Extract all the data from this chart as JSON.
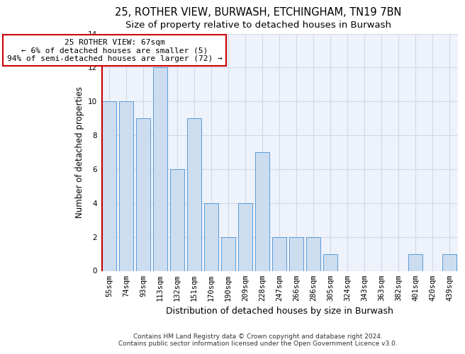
{
  "title1": "25, ROTHER VIEW, BURWASH, ETCHINGHAM, TN19 7BN",
  "title2": "Size of property relative to detached houses in Burwash",
  "xlabel": "Distribution of detached houses by size in Burwash",
  "ylabel": "Number of detached properties",
  "categories": [
    "55sqm",
    "74sqm",
    "93sqm",
    "113sqm",
    "132sqm",
    "151sqm",
    "170sqm",
    "190sqm",
    "209sqm",
    "228sqm",
    "247sqm",
    "266sqm",
    "286sqm",
    "305sqm",
    "324sqm",
    "343sqm",
    "363sqm",
    "382sqm",
    "401sqm",
    "420sqm",
    "439sqm"
  ],
  "values": [
    10,
    10,
    9,
    12,
    6,
    9,
    4,
    2,
    4,
    7,
    2,
    2,
    2,
    1,
    0,
    0,
    0,
    0,
    1,
    0,
    1
  ],
  "bar_color": "#ccddf0",
  "bar_edge_color": "#5b9bd5",
  "grid_color": "#d0d8e8",
  "background_color": "#eef2fa",
  "ref_line_color": "#cc0000",
  "annotation_text": "25 ROTHER VIEW: 67sqm\n← 6% of detached houses are smaller (5)\n94% of semi-detached houses are larger (72) →",
  "annotation_box_color": "#ffffff",
  "annotation_box_edge_color": "#cc0000",
  "ylim": [
    0,
    14
  ],
  "yticks": [
    0,
    2,
    4,
    6,
    8,
    10,
    12,
    14
  ],
  "footnote": "Contains HM Land Registry data © Crown copyright and database right 2024.\nContains public sector information licensed under the Open Government Licence v3.0.",
  "title1_fontsize": 10.5,
  "title2_fontsize": 9.5,
  "xlabel_fontsize": 9,
  "ylabel_fontsize": 8.5,
  "tick_fontsize": 7.5,
  "annotation_fontsize": 8,
  "footnote_fontsize": 6.5
}
